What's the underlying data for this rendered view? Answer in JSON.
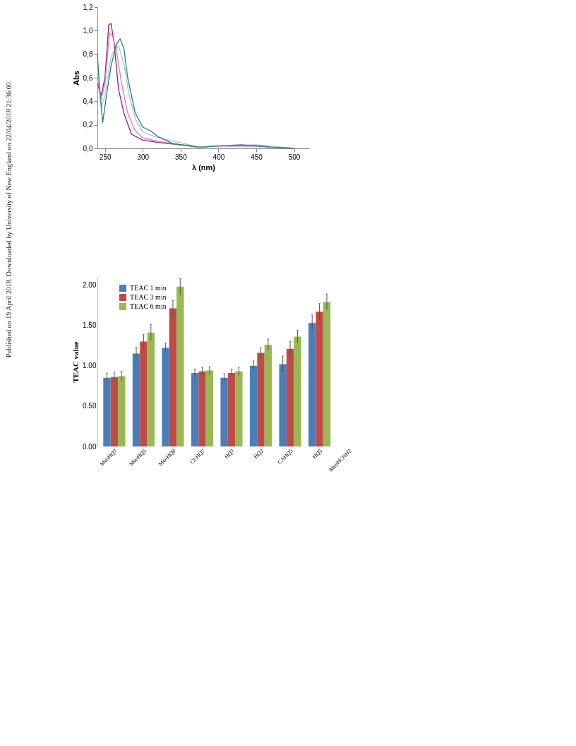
{
  "chart_data": [
    {
      "type": "line",
      "xlabel": "λ (nm)",
      "ylabel": "Abs",
      "xlim": [
        240,
        520
      ],
      "xticks": [
        250,
        300,
        350,
        400,
        450,
        500
      ],
      "ylim": [
        0,
        1.2
      ],
      "yticks": [
        {
          "value": 0,
          "label": "0,0"
        },
        {
          "value": 0.2,
          "label": "0,2"
        },
        {
          "value": 0.4,
          "label": "0,4"
        },
        {
          "value": 0.6,
          "label": "0,6"
        },
        {
          "value": 0.8,
          "label": "0,8"
        },
        {
          "value": 1.0,
          "label": "1,0"
        },
        {
          "value": 1.2,
          "label": "1,2"
        }
      ],
      "grid": false,
      "legend": false,
      "marker": "none",
      "line_style": "solid",
      "annotations": [
        "Published on 19 April 2018. Downloaded by University of New England on 22/04/2018 21:36:00."
      ],
      "series": [
        {
          "color": "#8b1a8b",
          "x": [
            240,
            245,
            250,
            255,
            258,
            262,
            268,
            275,
            285,
            300,
            320,
            350,
            375,
            400,
            450,
            500
          ],
          "values": [
            0.55,
            0.45,
            0.6,
            1.05,
            1.06,
            0.9,
            0.5,
            0.3,
            0.12,
            0.07,
            0.05,
            0.03,
            0.01,
            0.02,
            0.02,
            0.0
          ]
        },
        {
          "color": "#e07ab8",
          "x": [
            240,
            245,
            250,
            256,
            260,
            265,
            272,
            280,
            290,
            300,
            320,
            350,
            375,
            400,
            450,
            500
          ],
          "values": [
            0.6,
            0.42,
            0.55,
            0.98,
            0.95,
            0.84,
            0.55,
            0.3,
            0.15,
            0.09,
            0.06,
            0.03,
            0.01,
            0.02,
            0.02,
            0.0
          ]
        },
        {
          "color": "#9cc9d9",
          "x": [
            240,
            245,
            250,
            258,
            263,
            268,
            275,
            282,
            290,
            300,
            315,
            375,
            400,
            450,
            500
          ],
          "values": [
            0.7,
            0.35,
            0.45,
            0.78,
            0.84,
            0.87,
            0.72,
            0.45,
            0.25,
            0.14,
            0.1,
            0.01,
            0.02,
            0.03,
            0.0
          ]
        },
        {
          "color": "#2e7d6e",
          "x": [
            240,
            243,
            247,
            252,
            258,
            265,
            270,
            275,
            280,
            290,
            300,
            310,
            320,
            340,
            375,
            400,
            430,
            470,
            500
          ],
          "values": [
            0.8,
            0.5,
            0.22,
            0.45,
            0.7,
            0.88,
            0.93,
            0.85,
            0.6,
            0.3,
            0.18,
            0.15,
            0.1,
            0.04,
            0.01,
            0.02,
            0.03,
            0.01,
            0.0
          ]
        }
      ]
    },
    {
      "type": "bar",
      "ylabel": "TEAC value",
      "categories": [
        "MeoHQ7",
        "MeoHQ5",
        "MeoHQ8",
        "Cl-HQ7",
        "HQ7",
        "HQ2",
        "CAHQ5",
        "HQ5",
        "MeoHCNH2"
      ],
      "ylim": [
        0,
        2.1
      ],
      "yticks": [
        {
          "value": 0,
          "label": "0.00"
        },
        {
          "value": 0.5,
          "label": "0.50"
        },
        {
          "value": 1.0,
          "label": "1.00"
        },
        {
          "value": 1.5,
          "label": "1.50"
        },
        {
          "value": 2.0,
          "label": "2.00"
        }
      ],
      "grid": false,
      "legend": "top left",
      "series": [
        {
          "name": "TEAC 1 min",
          "color": "#4a7ebb",
          "values": [
            0.85,
            1.15,
            1.22,
            0.91,
            0.85,
            1.0,
            1.02,
            1.53,
            0.0
          ],
          "errors": [
            0.06,
            0.08,
            0.06,
            0.05,
            0.05,
            0.06,
            0.1,
            0.1,
            null
          ]
        },
        {
          "name": "TEAC 3 min",
          "color": "#be4b48",
          "values": [
            0.86,
            1.3,
            1.71,
            0.93,
            0.91,
            1.16,
            1.21,
            1.67,
            0.0
          ],
          "errors": [
            0.06,
            0.09,
            0.1,
            0.05,
            0.05,
            0.06,
            0.09,
            0.1,
            null
          ]
        },
        {
          "name": "TEAC 6 min",
          "color": "#98b954",
          "values": [
            0.87,
            1.41,
            1.98,
            0.94,
            0.93,
            1.26,
            1.36,
            1.79,
            0.0
          ],
          "errors": [
            0.06,
            0.1,
            0.1,
            0.05,
            0.05,
            0.07,
            0.08,
            0.1,
            null
          ]
        }
      ]
    }
  ]
}
